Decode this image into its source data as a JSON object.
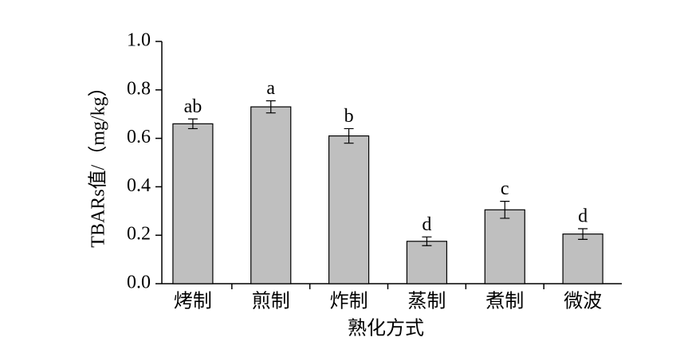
{
  "chart_data": {
    "type": "bar",
    "categories": [
      "烤制",
      "煎制",
      "炸制",
      "蒸制",
      "煮制",
      "微波"
    ],
    "values": [
      0.66,
      0.73,
      0.61,
      0.175,
      0.305,
      0.205
    ],
    "errors": [
      0.02,
      0.025,
      0.03,
      0.018,
      0.035,
      0.022
    ],
    "annotations": [
      "ab",
      "a",
      "b",
      "d",
      "c",
      "d"
    ],
    "color": "#bfbfbf",
    "xlabel": "熟化方式",
    "ylabel": "TBARs值/（mg/kg）",
    "ylim": [
      0,
      1.0
    ],
    "yticks": [
      {
        "value": 0,
        "label": "0.0"
      },
      0.2,
      0.4,
      0.6,
      0.8,
      {
        "value": 1.0,
        "label": "1.0"
      }
    ]
  }
}
